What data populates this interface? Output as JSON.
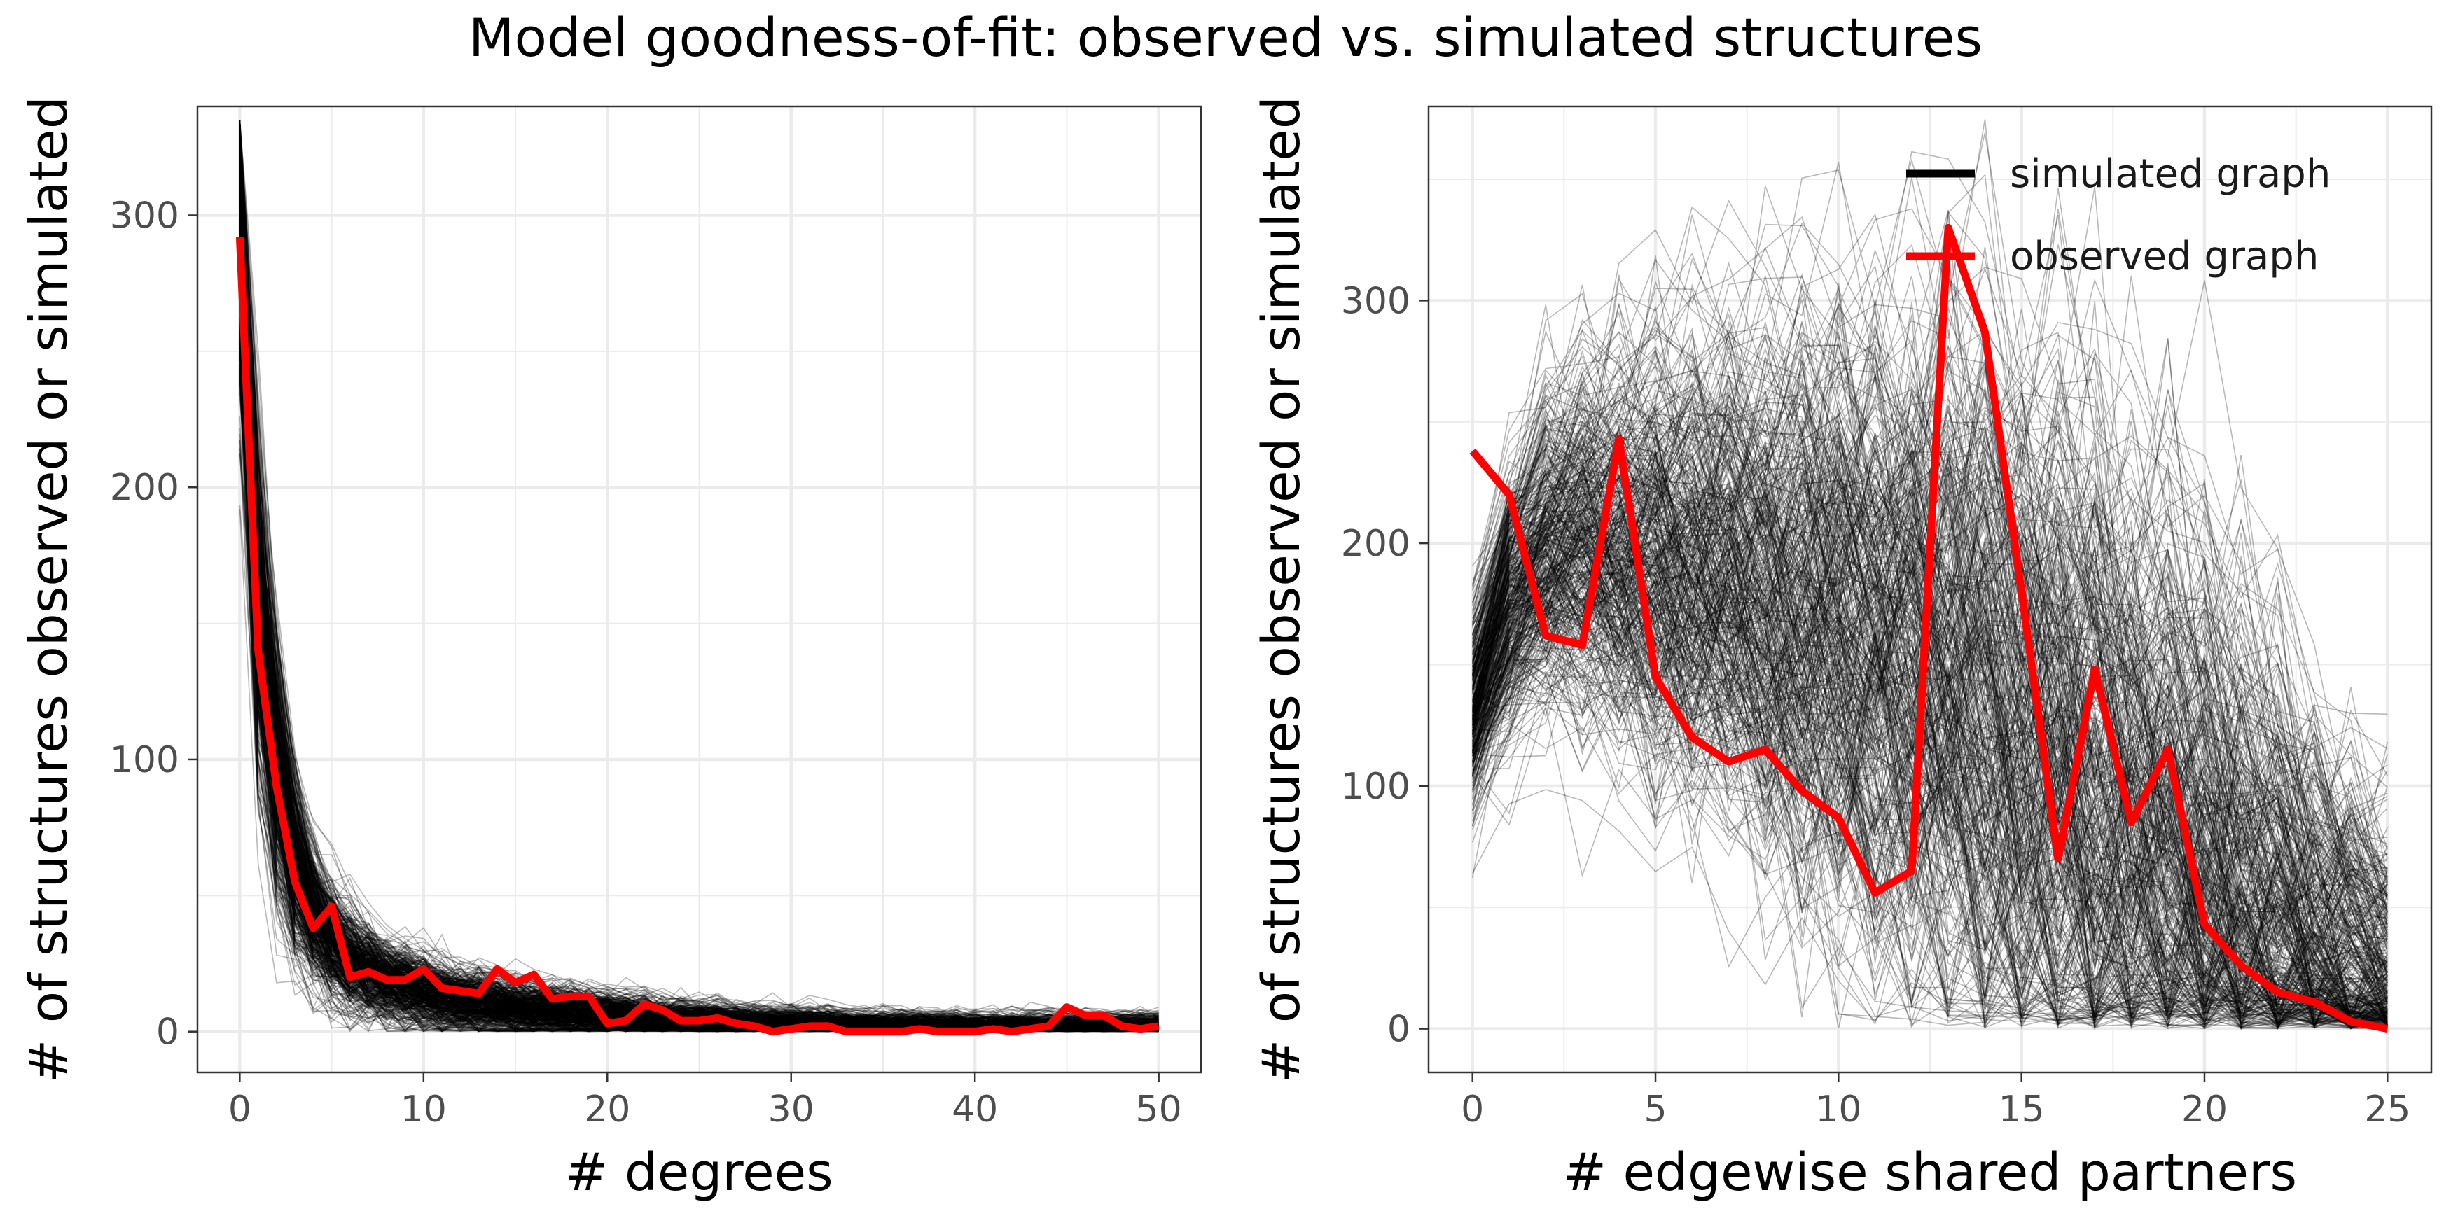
{
  "title": "Model goodness-of-fit: observed vs. simulated structures",
  "colors": {
    "simulated": "#000000",
    "observed": "#ff0000",
    "grid": "#ebebeb",
    "axis_text": "#4d4d4d"
  },
  "chart_data": [
    {
      "type": "line",
      "panel": "left",
      "xlabel": "# degrees",
      "ylabel": "# of structures observed or simulated",
      "xlim": [
        -2.3,
        52.3
      ],
      "ylim": [
        -15,
        340
      ],
      "x_ticks": [
        0,
        10,
        20,
        30,
        40,
        50
      ],
      "y_ticks": [
        0,
        100,
        200,
        300
      ],
      "x_tick_labels": [
        "0",
        "10",
        "20",
        "30",
        "40",
        "50"
      ],
      "y_tick_labels": [
        "0",
        "100",
        "200",
        "300"
      ],
      "grid": true,
      "x": [
        0,
        1,
        2,
        3,
        4,
        5,
        6,
        7,
        8,
        9,
        10,
        11,
        12,
        13,
        14,
        15,
        16,
        17,
        18,
        19,
        20,
        21,
        22,
        23,
        24,
        25,
        26,
        27,
        28,
        29,
        30,
        31,
        32,
        33,
        34,
        35,
        36,
        37,
        38,
        39,
        40,
        41,
        42,
        43,
        44,
        45,
        46,
        47,
        48,
        49,
        50
      ],
      "series": [
        {
          "name": "observed graph",
          "values": [
            292,
            140,
            90,
            55,
            38,
            46,
            20,
            22,
            19,
            19,
            23,
            16,
            15,
            14,
            23,
            18,
            21,
            12,
            13,
            13,
            3,
            4,
            10,
            8,
            4,
            4,
            5,
            3,
            2,
            0,
            1,
            2,
            2,
            0,
            0,
            0,
            0,
            1,
            0,
            0,
            0,
            1,
            0,
            1,
            2,
            9,
            6,
            6,
            2,
            1,
            2
          ]
        },
        {
          "name": "simulated graph",
          "simulated_band": {
            "center": [
              292,
              155,
              95,
              60,
              42,
              32,
              25,
              21,
              18,
              16,
              14,
              12,
              11,
              10,
              9,
              8,
              7.5,
              7,
              6.5,
              6,
              5.5,
              5,
              4.5,
              4,
              3.6,
              3.3,
              3,
              2.8,
              2.6,
              2.4,
              2.2,
              2,
              1.9,
              1.8,
              1.7,
              1.6,
              1.5,
              1.4,
              1.3,
              1.2,
              1.1,
              1,
              1,
              1,
              1,
              1,
              1,
              1,
              1,
              1,
              1
            ],
            "spread": [
              32,
              28,
              22,
              16,
              12,
              10,
              9,
              8,
              7,
              7,
              6.5,
              6,
              5.5,
              5.5,
              5,
              5,
              4.5,
              4.5,
              4.5,
              4,
              4,
              4,
              4,
              3.5,
              3.5,
              3.5,
              3.5,
              3,
              3,
              3,
              3,
              3,
              3,
              2.5,
              2.5,
              2.5,
              2.5,
              2.5,
              2.5,
              2.5,
              2.5,
              2.5,
              2.5,
              2.5,
              2.5,
              2.5,
              2.5,
              2.5,
              2.5,
              2.5,
              2.5
            ],
            "n_simulations": 500
          }
        }
      ]
    },
    {
      "type": "line",
      "panel": "right",
      "xlabel": "# edgewise shared partners",
      "ylabel": "# of structures observed or simulated",
      "xlim": [
        -1.2,
        26.2
      ],
      "ylim": [
        -18,
        380
      ],
      "x_ticks": [
        0,
        5,
        10,
        15,
        20,
        25
      ],
      "y_ticks": [
        0,
        100,
        200,
        300
      ],
      "x_tick_labels": [
        "0",
        "5",
        "10",
        "15",
        "20",
        "25"
      ],
      "y_tick_labels": [
        "0",
        "100",
        "200",
        "300"
      ],
      "grid": true,
      "legend": {
        "position": "top-right",
        "entries": [
          "simulated graph",
          "observed graph"
        ]
      },
      "x": [
        0,
        1,
        2,
        3,
        4,
        5,
        6,
        7,
        8,
        9,
        10,
        11,
        12,
        13,
        14,
        15,
        16,
        17,
        18,
        19,
        20,
        21,
        22,
        23,
        24,
        25
      ],
      "series": [
        {
          "name": "observed graph",
          "values": [
            238,
            220,
            162,
            158,
            243,
            145,
            120,
            110,
            115,
            98,
            87,
            56,
            65,
            330,
            287,
            180,
            70,
            148,
            85,
            115,
            43,
            26,
            15,
            11,
            3,
            0
          ]
        },
        {
          "name": "simulated graph",
          "simulated_band": {
            "center": [
              130,
              175,
              195,
              198,
              196,
              192,
              188,
              184,
              178,
              172,
              166,
              158,
              150,
              141,
              131,
              120,
              108,
              96,
              84,
              72,
              60,
              49,
              39,
              30,
              22,
              16
            ],
            "spread": [
              22,
              28,
              32,
              38,
              42,
              46,
              50,
              54,
              58,
              62,
              66,
              70,
              72,
              74,
              76,
              78,
              78,
              78,
              76,
              74,
              70,
              64,
              58,
              50,
              42,
              34
            ],
            "n_simulations": 400
          }
        }
      ]
    }
  ]
}
